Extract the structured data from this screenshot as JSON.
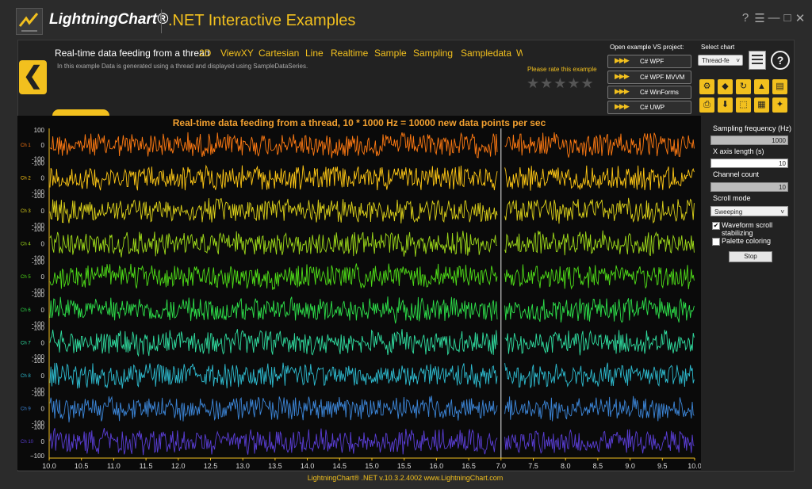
{
  "titlebar": {
    "brand": "LightningChart®",
    "app_title": ".NET Interactive Examples",
    "window_buttons": [
      "?",
      "☰",
      "—",
      "□",
      "✕"
    ]
  },
  "header": {
    "back_icon": "❮",
    "example_title": "Real-time data feeding from a thread",
    "tags": [
      "2D",
      "ViewXY",
      "Cartesian",
      "Line",
      "Realtime",
      "Sample",
      "Sampling",
      "Sampledata",
      "W"
    ],
    "description": "In this example Data is generated using a thread and displayed using SampleDataSeries.",
    "rate_label": "Please rate this example",
    "stars": "★★★★★",
    "open_vs_label": "Open example VS project:",
    "vs_buttons": [
      "C# WPF",
      "C# WPF MVVM",
      "C# WinForms",
      "C# UWP"
    ],
    "vs_arrows": "▶▶▶",
    "select_chart_label": "Select chart",
    "chart_select_value": "Thread-fe",
    "help_icon": "?",
    "tool_icons": [
      "⚙",
      "◆",
      "↻",
      "▲",
      "▤",
      "⎙",
      "⬇",
      "⬚",
      "▦",
      "✦"
    ]
  },
  "chart_data": {
    "type": "line",
    "title": "Real-time data feeding from a thread, 10 * 1000 Hz = 10000 new data points per sec",
    "channels": [
      "Ch 1",
      "Ch 2",
      "Ch 3",
      "Ch 4",
      "Ch 5",
      "Ch 6",
      "Ch 7",
      "Ch 8",
      "Ch 9",
      "Ch 10"
    ],
    "channel_colors": [
      "#ff7a12",
      "#ffc815",
      "#ddd21a",
      "#9fdb1a",
      "#4fdd18",
      "#2ee04a",
      "#30dda0",
      "#2ebcd0",
      "#3c86d8",
      "#5a3ed6"
    ],
    "y_ticks_top": "100",
    "y_ticks_mid": "0",
    "y_ticks_sep": "-100",
    "y_ticks_bottom": "−100",
    "ylim": [
      -100,
      100
    ],
    "x_ticks": [
      "10.0",
      "10.5",
      "11.0",
      "11.5",
      "12.0",
      "12.5",
      "13.0",
      "13.5",
      "14.0",
      "14.5",
      "15.0",
      "15.5",
      "16.0",
      "16.5",
      "7.0",
      "7.5",
      "8.0",
      "8.5",
      "9.0",
      "9.5",
      "10.0"
    ],
    "sweep_split_fraction": 0.7,
    "grid": false
  },
  "right_panel": {
    "sampling_label": "Sampling frequency (Hz)",
    "sampling_value": "1000",
    "x_axis_label": "X axis length (s)",
    "x_axis_value": "10",
    "channel_count_label": "Channel count",
    "channel_count_value": "10",
    "scroll_mode_label": "Scroll mode",
    "scroll_mode_value": "Sweeping",
    "waveform_label_1": "Waveform scroll",
    "waveform_label_2": "stabilizing",
    "waveform_checked": "✔",
    "palette_label": "Palette coloring",
    "stop_label": "Stop",
    "dropdown_icon": "˅"
  },
  "footer": {
    "text": "LightningChart® .NET v.10.3.2.4002  www.LightningChart.com"
  }
}
